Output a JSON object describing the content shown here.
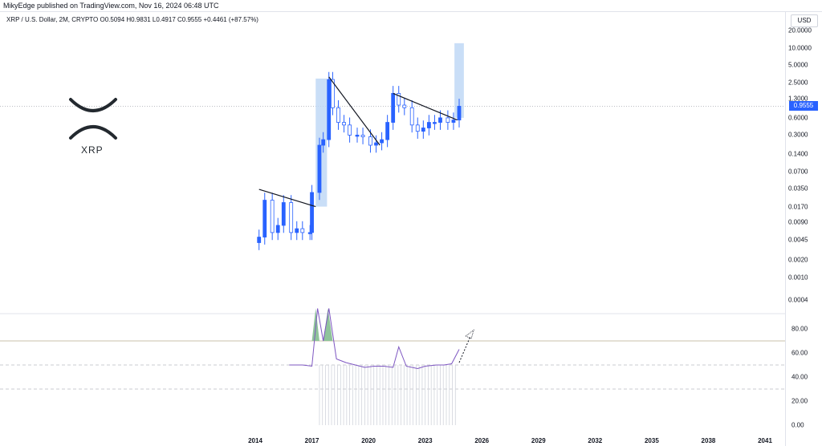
{
  "header": {
    "publisher_line": "MikyEdge published on TradingView.com, Nov 16, 2024 06:48 UTC"
  },
  "symbol": {
    "line": "XRP / U.S. Dollar, 2M, CRYPTO  O0.5094  H0.9831  L0.4917  C0.9555  +0.4461 (+87.57%)"
  },
  "currency": "USD",
  "logo": {
    "text": "XRP",
    "icon": "xrp-logo-icon"
  },
  "price_axis": {
    "labels": [
      "20.0000",
      "10.0000",
      "5.0000",
      "2.5000",
      "1.3000",
      "0.6000",
      "0.3000",
      "0.1400",
      "0.0700",
      "0.0350",
      "0.0170",
      "0.0090",
      "0.0045",
      "0.0020",
      "0.0010",
      "0.0004"
    ],
    "current_price": "0.9555",
    "current_price_color": "#2962ff"
  },
  "rsi_axis": {
    "labels": [
      "80.00",
      "60.00",
      "40.00",
      "20.00",
      "0.00"
    ]
  },
  "time_axis": {
    "labels": [
      "2014",
      "2017",
      "2020",
      "2023",
      "2026",
      "2029",
      "2032",
      "2035",
      "2038",
      "2041"
    ]
  },
  "colors": {
    "candle": "#2962ff",
    "highlight": "#bbd6f5",
    "rsi_line": "#7e57c2",
    "rsi_overbought_fill": "#8fc49a",
    "trendline": "#131722"
  },
  "chart_data": {
    "type": "line",
    "title": "XRP / U.S. Dollar, 2M, CRYPTO",
    "scale": "log",
    "series": [
      {
        "name": "XRP / U.S. Dollar",
        "kind": "candlestick",
        "x": [
          2014.2,
          2014.5,
          2014.9,
          2015.2,
          2015.5,
          2015.9,
          2016.2,
          2016.5,
          2016.9,
          2017.0,
          2017.4,
          2017.6,
          2017.9,
          2018.1,
          2018.4,
          2018.7,
          2019.0,
          2019.4,
          2019.7,
          2020.1,
          2020.4,
          2020.7,
          2021.0,
          2021.3,
          2021.6,
          2021.9,
          2022.3,
          2022.6,
          2022.9,
          2023.2,
          2023.5,
          2023.8,
          2024.2,
          2024.5,
          2024.8
        ],
        "close": [
          0.005,
          0.022,
          0.006,
          0.008,
          0.02,
          0.006,
          0.007,
          0.006,
          0.006,
          0.03,
          0.2,
          0.25,
          2.8,
          0.9,
          0.5,
          0.45,
          0.3,
          0.3,
          0.28,
          0.2,
          0.22,
          0.25,
          0.5,
          1.6,
          1.0,
          0.9,
          0.45,
          0.35,
          0.4,
          0.5,
          0.5,
          0.6,
          0.5,
          0.55,
          0.9555
        ]
      },
      {
        "name": "RSI",
        "x": [
          2015.8,
          2016.5,
          2017.0,
          2017.3,
          2017.6,
          2017.9,
          2018.3,
          2018.8,
          2019.3,
          2019.8,
          2020.3,
          2020.8,
          2021.3,
          2021.6,
          2022.0,
          2022.6,
          2023.0,
          2023.6,
          2024.0,
          2024.4,
          2024.8
        ],
        "values": [
          50,
          50,
          49,
          97,
          70,
          97,
          55,
          52,
          50,
          48,
          49,
          49,
          48,
          65,
          49,
          47,
          49,
          50,
          50,
          51,
          63
        ]
      }
    ],
    "annotations": [
      "trendline 2014-2016 breakout",
      "trendline 2018-2020 breakout",
      "trendline 2021-2024 breakout"
    ],
    "ylim_rsi": [
      0,
      100
    ]
  }
}
